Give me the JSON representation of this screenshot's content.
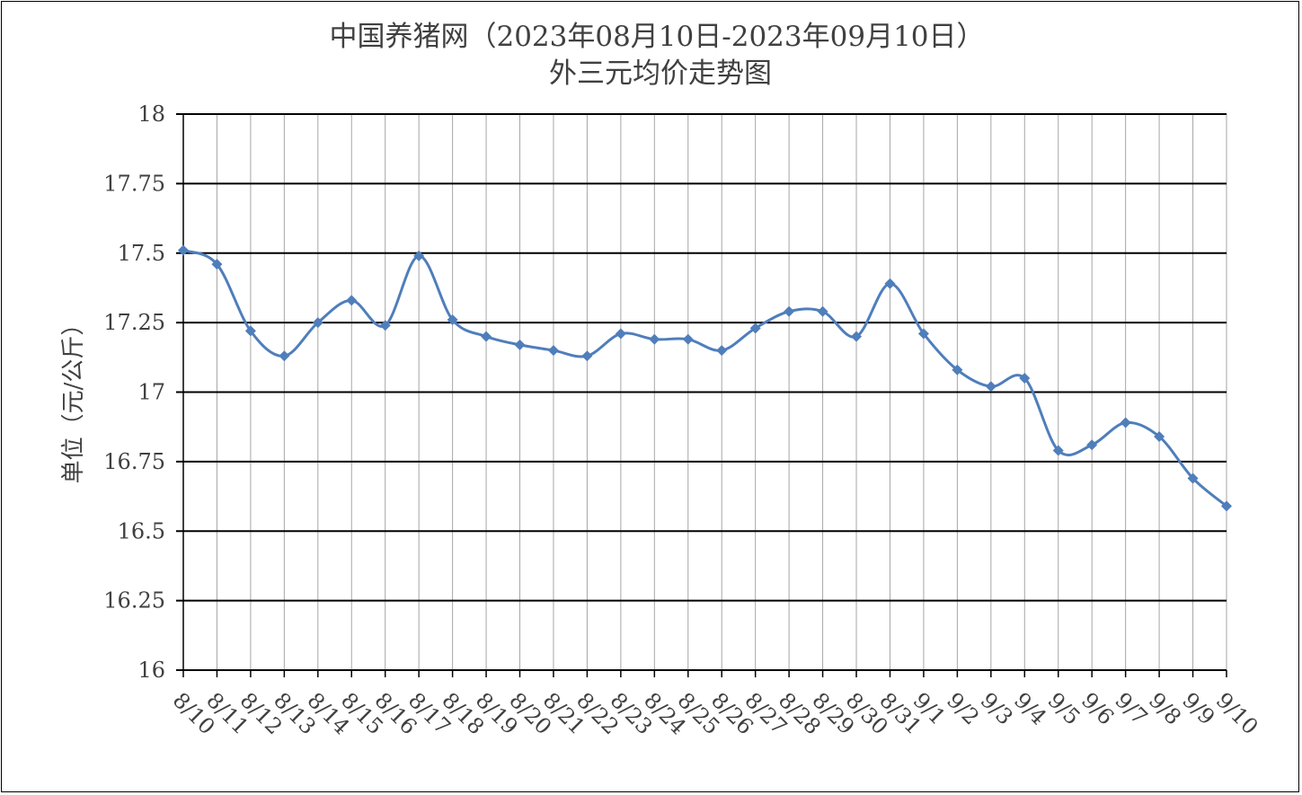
{
  "chart_data": {
    "type": "line",
    "title": "中国养猪网（2023年08月10日-2023年09月10日）",
    "subtitle": "外三元均价走势图",
    "xlabel": "",
    "ylabel": "单位（元/公斤）",
    "ylim": [
      16,
      18
    ],
    "yticks": [
      "16",
      "16.25",
      "16.5",
      "16.75",
      "17",
      "17.25",
      "17.5",
      "17.75",
      "18"
    ],
    "grid": "horizontal major + vertical category lines",
    "legend": "none",
    "line_color": "#4F7EBB",
    "categories": [
      "8/10",
      "8/11",
      "8/12",
      "8/13",
      "8/14",
      "8/15",
      "8/16",
      "8/17",
      "8/18",
      "8/19",
      "8/20",
      "8/21",
      "8/22",
      "8/23",
      "8/24",
      "8/25",
      "8/26",
      "8/27",
      "8/28",
      "8/29",
      "8/30",
      "8/31",
      "9/1",
      "9/2",
      "9/3",
      "9/4",
      "9/5",
      "9/6",
      "9/7",
      "9/8",
      "9/9",
      "9/10"
    ],
    "series": [
      {
        "values": [
          17.51,
          17.46,
          17.22,
          17.13,
          17.25,
          17.33,
          17.24,
          17.49,
          17.26,
          17.2,
          17.17,
          17.15,
          17.13,
          17.21,
          17.19,
          17.19,
          17.15,
          17.23,
          17.29,
          17.29,
          17.2,
          17.39,
          17.21,
          17.08,
          17.02,
          17.05,
          16.79,
          16.81,
          16.89,
          16.84,
          16.69,
          16.59
        ]
      }
    ]
  }
}
